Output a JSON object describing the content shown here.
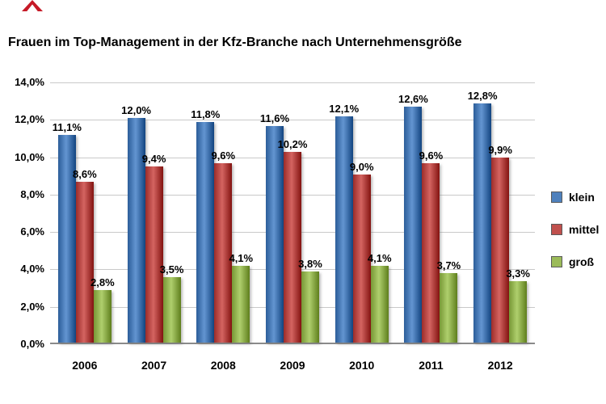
{
  "page": {
    "title": "Frauen im Top-Management in der Kfz-Branche nach Unternehmensgröße"
  },
  "chart_data": {
    "type": "bar",
    "title": "Frauen im Top-Management in der Kfz-Branche nach Unternehmensgröße",
    "categories": [
      "2006",
      "2007",
      "2008",
      "2009",
      "2010",
      "2011",
      "2012"
    ],
    "series": [
      {
        "name": "klein",
        "color": "#4f81bd",
        "values": [
          11.1,
          12.0,
          11.8,
          11.6,
          12.1,
          12.6,
          12.8
        ]
      },
      {
        "name": "mittel",
        "color": "#c0504d",
        "values": [
          8.6,
          9.4,
          9.6,
          10.2,
          9.0,
          9.6,
          9.9
        ]
      },
      {
        "name": "groß",
        "color": "#9bbb59",
        "values": [
          2.8,
          3.5,
          4.1,
          3.8,
          4.1,
          3.7,
          3.3
        ]
      }
    ],
    "value_labels": [
      [
        "11,1%",
        "12,0%",
        "11,8%",
        "11,6%",
        "12,1%",
        "12,6%",
        "12,8%"
      ],
      [
        "8,6%",
        "9,4%",
        "9,6%",
        "10,2%",
        "9,0%",
        "9,6%",
        "9,9%"
      ],
      [
        "2,8%",
        "3,5%",
        "4,1%",
        "3,8%",
        "4,1%",
        "3,7%",
        "3,3%"
      ]
    ],
    "xlabel": "",
    "ylabel": "",
    "ylim": [
      0,
      14
    ],
    "ytick_step": 2,
    "ytick_labels": [
      "0,0%",
      "2,0%",
      "4,0%",
      "6,0%",
      "8,0%",
      "10,0%",
      "12,0%",
      "14,0%"
    ],
    "grid": true,
    "legend_position": "right"
  }
}
